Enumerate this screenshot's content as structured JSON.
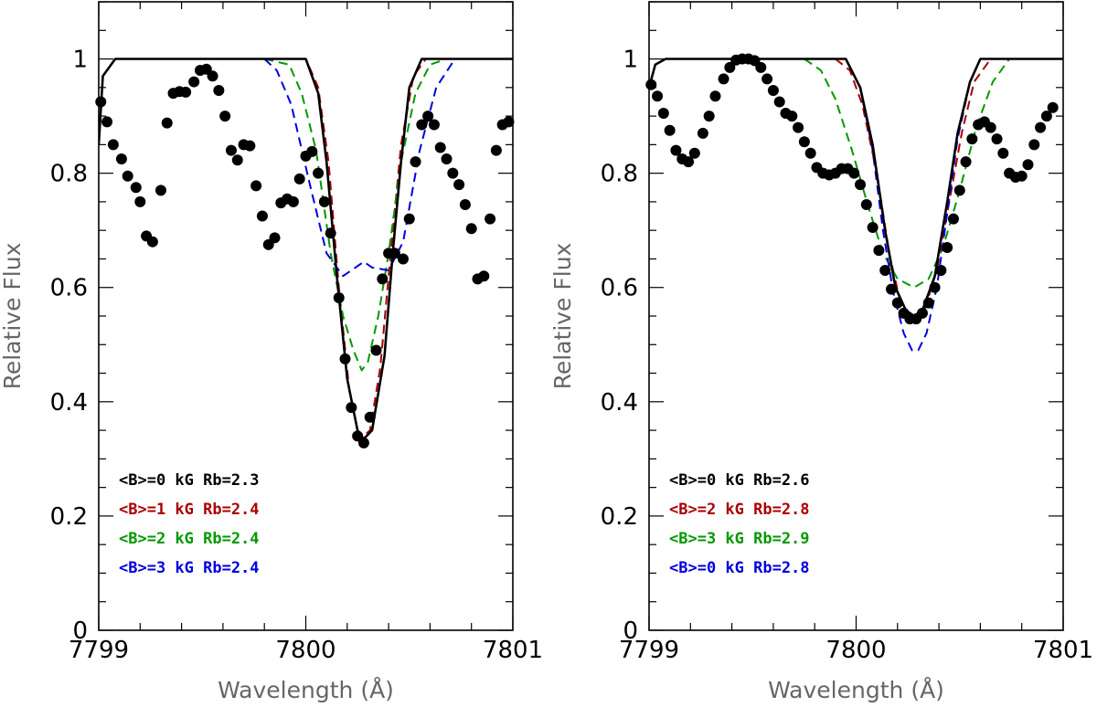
{
  "colors": {
    "black": "#000000",
    "red": "#aa0000",
    "green": "#009900",
    "blue": "#0000dd"
  },
  "chart_data": [
    {
      "type": "line",
      "xlabel": "Wavelength (Å)",
      "ylabel": "Relative Flux",
      "xlim": [
        7799,
        7801
      ],
      "ylim": [
        0,
        1.1
      ],
      "xticks": [
        7799,
        7800,
        7801
      ],
      "yticks": [
        0,
        0.2,
        0.4,
        0.6,
        0.8,
        1
      ],
      "xtick_labels": [
        "7799",
        "7800",
        "7801"
      ],
      "ytick_labels": [
        "0",
        "0.2",
        "0.4",
        "0.6",
        "0.8",
        "1"
      ],
      "legend_position": "bottom-left",
      "series": [
        {
          "name": "<B>=0 kG Rb=2.3",
          "color": "#000000",
          "dashed": false,
          "points": [
            [
              7799.0,
              0.85
            ],
            [
              7799.02,
              0.97
            ],
            [
              7799.08,
              1.0
            ],
            [
              7800.0,
              1.0
            ],
            [
              7800.06,
              0.94
            ],
            [
              7800.1,
              0.82
            ],
            [
              7800.15,
              0.62
            ],
            [
              7800.2,
              0.44
            ],
            [
              7800.25,
              0.35
            ],
            [
              7800.28,
              0.335
            ],
            [
              7800.32,
              0.35
            ],
            [
              7800.38,
              0.48
            ],
            [
              7800.42,
              0.66
            ],
            [
              7800.46,
              0.82
            ],
            [
              7800.5,
              0.95
            ],
            [
              7800.56,
              1.0
            ],
            [
              7801.0,
              1.0
            ]
          ]
        },
        {
          "name": "<B>=1 kG Rb=2.4",
          "color": "#aa0000",
          "dashed": true,
          "points": [
            [
              7799.9,
              1.0
            ],
            [
              7800.0,
              1.0
            ],
            [
              7800.06,
              0.95
            ],
            [
              7800.11,
              0.82
            ],
            [
              7800.16,
              0.6
            ],
            [
              7800.21,
              0.42
            ],
            [
              7800.25,
              0.35
            ],
            [
              7800.28,
              0.34
            ],
            [
              7800.31,
              0.35
            ],
            [
              7800.36,
              0.46
            ],
            [
              7800.41,
              0.66
            ],
            [
              7800.46,
              0.85
            ],
            [
              7800.52,
              0.97
            ],
            [
              7800.58,
              1.0
            ],
            [
              7801.0,
              1.0
            ]
          ]
        },
        {
          "name": "<B>=2 kG Rb=2.4",
          "color": "#009900",
          "dashed": true,
          "points": [
            [
              7799.8,
              1.0
            ],
            [
              7799.92,
              0.99
            ],
            [
              7799.98,
              0.94
            ],
            [
              7800.05,
              0.84
            ],
            [
              7800.12,
              0.66
            ],
            [
              7800.18,
              0.55
            ],
            [
              7800.23,
              0.49
            ],
            [
              7800.27,
              0.455
            ],
            [
              7800.3,
              0.47
            ],
            [
              7800.35,
              0.55
            ],
            [
              7800.4,
              0.66
            ],
            [
              7800.46,
              0.82
            ],
            [
              7800.53,
              0.94
            ],
            [
              7800.6,
              0.99
            ],
            [
              7800.68,
              1.0
            ],
            [
              7801.0,
              1.0
            ]
          ]
        },
        {
          "name": "<B>=3 kG Rb=2.4",
          "color": "#0000dd",
          "dashed": true,
          "points": [
            [
              7799.8,
              1.0
            ],
            [
              7799.86,
              0.98
            ],
            [
              7799.93,
              0.92
            ],
            [
              7800.02,
              0.78
            ],
            [
              7800.1,
              0.66
            ],
            [
              7800.18,
              0.62
            ],
            [
              7800.24,
              0.635
            ],
            [
              7800.28,
              0.645
            ],
            [
              7800.32,
              0.635
            ],
            [
              7800.4,
              0.63
            ],
            [
              7800.47,
              0.68
            ],
            [
              7800.55,
              0.84
            ],
            [
              7800.63,
              0.95
            ],
            [
              7800.72,
              1.0
            ],
            [
              7801.0,
              1.0
            ]
          ]
        }
      ],
      "observed": {
        "color": "#000000",
        "points": [
          [
            7799.01,
            0.925
          ],
          [
            7799.04,
            0.89
          ],
          [
            7799.07,
            0.85
          ],
          [
            7799.11,
            0.825
          ],
          [
            7799.14,
            0.795
          ],
          [
            7799.18,
            0.775
          ],
          [
            7799.2,
            0.75
          ],
          [
            7799.23,
            0.69
          ],
          [
            7799.26,
            0.68
          ],
          [
            7799.3,
            0.77
          ],
          [
            7799.33,
            0.888
          ],
          [
            7799.36,
            0.94
          ],
          [
            7799.39,
            0.943
          ],
          [
            7799.42,
            0.942
          ],
          [
            7799.46,
            0.96
          ],
          [
            7799.49,
            0.98
          ],
          [
            7799.52,
            0.982
          ],
          [
            7799.55,
            0.97
          ],
          [
            7799.58,
            0.945
          ],
          [
            7799.61,
            0.9
          ],
          [
            7799.64,
            0.84
          ],
          [
            7799.67,
            0.823
          ],
          [
            7799.7,
            0.85
          ],
          [
            7799.73,
            0.848
          ],
          [
            7799.76,
            0.778
          ],
          [
            7799.79,
            0.725
          ],
          [
            7799.82,
            0.675
          ],
          [
            7799.85,
            0.687
          ],
          [
            7799.88,
            0.748
          ],
          [
            7799.91,
            0.755
          ],
          [
            7799.94,
            0.75
          ],
          [
            7799.97,
            0.79
          ],
          [
            7800.0,
            0.83
          ],
          [
            7800.03,
            0.838
          ],
          [
            7800.06,
            0.8
          ],
          [
            7800.09,
            0.75
          ],
          [
            7800.12,
            0.695
          ],
          [
            7800.16,
            0.582
          ],
          [
            7800.19,
            0.475
          ],
          [
            7800.22,
            0.39
          ],
          [
            7800.25,
            0.34
          ],
          [
            7800.28,
            0.328
          ],
          [
            7800.31,
            0.373
          ],
          [
            7800.34,
            0.49
          ],
          [
            7800.37,
            0.615
          ],
          [
            7800.4,
            0.66
          ],
          [
            7800.43,
            0.66
          ],
          [
            7800.47,
            0.65
          ],
          [
            7800.5,
            0.72
          ],
          [
            7800.53,
            0.82
          ],
          [
            7800.56,
            0.885
          ],
          [
            7800.59,
            0.9
          ],
          [
            7800.62,
            0.885
          ],
          [
            7800.65,
            0.845
          ],
          [
            7800.68,
            0.825
          ],
          [
            7800.71,
            0.8
          ],
          [
            7800.74,
            0.78
          ],
          [
            7800.77,
            0.745
          ],
          [
            7800.8,
            0.703
          ],
          [
            7800.83,
            0.615
          ],
          [
            7800.86,
            0.62
          ],
          [
            7800.89,
            0.72
          ],
          [
            7800.92,
            0.84
          ],
          [
            7800.95,
            0.885
          ],
          [
            7800.98,
            0.89
          ]
        ]
      }
    },
    {
      "type": "line",
      "xlabel": "Wavelength (Å)",
      "ylabel": "Relative Flux",
      "xlim": [
        7799,
        7801
      ],
      "ylim": [
        0,
        1.1
      ],
      "xticks": [
        7799,
        7800,
        7801
      ],
      "yticks": [
        0,
        0.2,
        0.4,
        0.6,
        0.8,
        1
      ],
      "xtick_labels": [
        "7799",
        "7800",
        "7801"
      ],
      "ytick_labels": [
        "0",
        "0.2",
        "0.4",
        "0.6",
        "0.8",
        "1"
      ],
      "legend_position": "bottom-left",
      "series": [
        {
          "name": "<B>=0 kG Rb=2.6",
          "color": "#000000",
          "dashed": false,
          "points": [
            [
              7799.0,
              0.95
            ],
            [
              7799.03,
              0.99
            ],
            [
              7799.08,
              1.0
            ],
            [
              7799.95,
              1.0
            ],
            [
              7800.02,
              0.95
            ],
            [
              7800.08,
              0.85
            ],
            [
              7800.14,
              0.7
            ],
            [
              7800.19,
              0.6
            ],
            [
              7800.24,
              0.56
            ],
            [
              7800.28,
              0.55
            ],
            [
              7800.32,
              0.56
            ],
            [
              7800.38,
              0.62
            ],
            [
              7800.44,
              0.75
            ],
            [
              7800.49,
              0.87
            ],
            [
              7800.55,
              0.96
            ],
            [
              7800.6,
              1.0
            ],
            [
              7801.0,
              1.0
            ]
          ]
        },
        {
          "name": "<B>=2 kG Rb=2.8",
          "color": "#aa0000",
          "dashed": true,
          "points": [
            [
              7799.9,
              1.0
            ],
            [
              7799.97,
              0.98
            ],
            [
              7800.03,
              0.92
            ],
            [
              7800.1,
              0.8
            ],
            [
              7800.16,
              0.66
            ],
            [
              7800.21,
              0.58
            ],
            [
              7800.26,
              0.55
            ],
            [
              7800.29,
              0.545
            ],
            [
              7800.33,
              0.56
            ],
            [
              7800.39,
              0.63
            ],
            [
              7800.45,
              0.75
            ],
            [
              7800.51,
              0.87
            ],
            [
              7800.57,
              0.96
            ],
            [
              7800.65,
              1.0
            ],
            [
              7801.0,
              1.0
            ]
          ]
        },
        {
          "name": "<B>=3 kG Rb=2.9",
          "color": "#009900",
          "dashed": true,
          "points": [
            [
              7799.75,
              1.0
            ],
            [
              7799.83,
              0.98
            ],
            [
              7799.9,
              0.93
            ],
            [
              7799.98,
              0.84
            ],
            [
              7800.06,
              0.74
            ],
            [
              7800.13,
              0.66
            ],
            [
              7800.2,
              0.615
            ],
            [
              7800.28,
              0.6
            ],
            [
              7800.35,
              0.615
            ],
            [
              7800.42,
              0.67
            ],
            [
              7800.5,
              0.77
            ],
            [
              7800.58,
              0.88
            ],
            [
              7800.66,
              0.96
            ],
            [
              7800.74,
              1.0
            ],
            [
              7801.0,
              1.0
            ]
          ]
        },
        {
          "name": "<B>=0 kG Rb=2.8",
          "color": "#0000dd",
          "dashed": true,
          "points": [
            [
              7799.95,
              1.0
            ],
            [
              7800.02,
              0.95
            ],
            [
              7800.08,
              0.84
            ],
            [
              7800.13,
              0.7
            ],
            [
              7800.18,
              0.59
            ],
            [
              7800.23,
              0.52
            ],
            [
              7800.27,
              0.49
            ],
            [
              7800.3,
              0.49
            ],
            [
              7800.34,
              0.52
            ],
            [
              7800.39,
              0.6
            ],
            [
              7800.44,
              0.73
            ],
            [
              7800.49,
              0.86
            ],
            [
              7800.55,
              0.96
            ],
            [
              7800.6,
              1.0
            ],
            [
              7801.0,
              1.0
            ]
          ]
        }
      ],
      "observed": {
        "color": "#000000",
        "points": [
          [
            7799.01,
            0.955
          ],
          [
            7799.04,
            0.935
          ],
          [
            7799.07,
            0.905
          ],
          [
            7799.1,
            0.875
          ],
          [
            7799.13,
            0.84
          ],
          [
            7799.16,
            0.825
          ],
          [
            7799.19,
            0.82
          ],
          [
            7799.22,
            0.835
          ],
          [
            7799.26,
            0.87
          ],
          [
            7799.29,
            0.9
          ],
          [
            7799.32,
            0.935
          ],
          [
            7799.36,
            0.965
          ],
          [
            7799.39,
            0.985
          ],
          [
            7799.42,
            0.998
          ],
          [
            7799.45,
            1.0
          ],
          [
            7799.48,
            1.0
          ],
          [
            7799.51,
            0.997
          ],
          [
            7799.54,
            0.985
          ],
          [
            7799.57,
            0.965
          ],
          [
            7799.6,
            0.945
          ],
          [
            7799.63,
            0.925
          ],
          [
            7799.66,
            0.905
          ],
          [
            7799.69,
            0.9
          ],
          [
            7799.72,
            0.88
          ],
          [
            7799.75,
            0.855
          ],
          [
            7799.78,
            0.835
          ],
          [
            7799.81,
            0.81
          ],
          [
            7799.84,
            0.8
          ],
          [
            7799.87,
            0.797
          ],
          [
            7799.9,
            0.8
          ],
          [
            7799.93,
            0.808
          ],
          [
            7799.96,
            0.808
          ],
          [
            7799.99,
            0.8
          ],
          [
            7800.02,
            0.78
          ],
          [
            7800.05,
            0.745
          ],
          [
            7800.08,
            0.705
          ],
          [
            7800.11,
            0.665
          ],
          [
            7800.14,
            0.63
          ],
          [
            7800.17,
            0.597
          ],
          [
            7800.2,
            0.573
          ],
          [
            7800.23,
            0.555
          ],
          [
            7800.26,
            0.545
          ],
          [
            7800.29,
            0.545
          ],
          [
            7800.32,
            0.555
          ],
          [
            7800.35,
            0.573
          ],
          [
            7800.38,
            0.6
          ],
          [
            7800.41,
            0.63
          ],
          [
            7800.44,
            0.67
          ],
          [
            7800.47,
            0.72
          ],
          [
            7800.5,
            0.77
          ],
          [
            7800.53,
            0.82
          ],
          [
            7800.56,
            0.86
          ],
          [
            7800.59,
            0.885
          ],
          [
            7800.62,
            0.89
          ],
          [
            7800.65,
            0.88
          ],
          [
            7800.68,
            0.86
          ],
          [
            7800.71,
            0.835
          ],
          [
            7800.74,
            0.8
          ],
          [
            7800.77,
            0.793
          ],
          [
            7800.8,
            0.795
          ],
          [
            7800.83,
            0.815
          ],
          [
            7800.86,
            0.85
          ],
          [
            7800.89,
            0.88
          ],
          [
            7800.92,
            0.9
          ],
          [
            7800.95,
            0.915
          ]
        ]
      }
    }
  ]
}
